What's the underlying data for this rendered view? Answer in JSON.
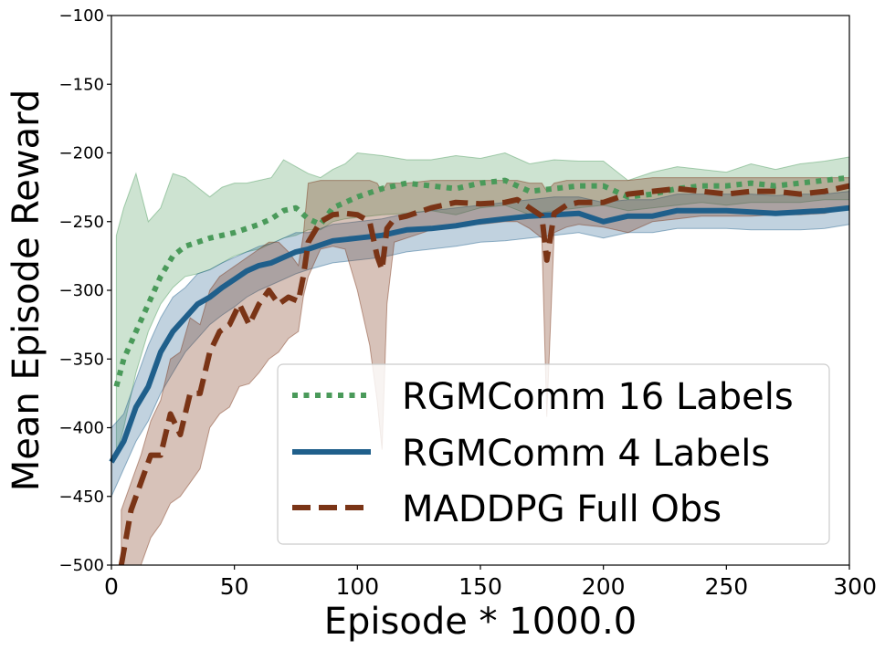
{
  "chart_data": {
    "type": "line",
    "title": "",
    "xlabel": "Episode * 1000.0",
    "ylabel": "Mean Episode Reward",
    "xlim": [
      0,
      300
    ],
    "ylim": [
      -500,
      -100
    ],
    "xticks": [
      0,
      50,
      100,
      150,
      200,
      250,
      300
    ],
    "yticks": [
      -100,
      -150,
      -200,
      -250,
      -300,
      -350,
      -400,
      -450,
      -500
    ],
    "xtick_labels": [
      "0",
      "50",
      "100",
      "150",
      "200",
      "250",
      "300"
    ],
    "ytick_labels": [
      "−100",
      "−150",
      "−200",
      "−250",
      "−300",
      "−350",
      "−400",
      "−450",
      "−500"
    ],
    "grid": false,
    "legend_position": "lower-right",
    "series": [
      {
        "name": "RGMComm 16 Labels",
        "color": "#4a9a5a",
        "style": "dotted",
        "x": [
          2,
          5,
          10,
          15,
          20,
          25,
          30,
          35,
          40,
          45,
          50,
          55,
          60,
          65,
          70,
          75,
          80,
          85,
          90,
          95,
          100,
          110,
          120,
          130,
          140,
          150,
          160,
          170,
          180,
          190,
          200,
          210,
          220,
          230,
          240,
          250,
          260,
          270,
          280,
          290,
          300
        ],
        "y": [
          -370,
          -350,
          -330,
          -310,
          -290,
          -275,
          -268,
          -265,
          -262,
          -260,
          -258,
          -255,
          -252,
          -248,
          -242,
          -240,
          -248,
          -252,
          -240,
          -236,
          -232,
          -226,
          -222,
          -224,
          -226,
          -222,
          -220,
          -228,
          -226,
          -224,
          -224,
          -232,
          -230,
          -226,
          -224,
          -224,
          -222,
          -224,
          -222,
          -220,
          -218
        ],
        "lower": [
          -420,
          -400,
          -360,
          -330,
          -310,
          -298,
          -290,
          -288,
          -285,
          -280,
          -275,
          -272,
          -270,
          -266,
          -262,
          -260,
          -256,
          -256,
          -250,
          -248,
          -247,
          -245,
          -244,
          -242,
          -245,
          -240,
          -238,
          -245,
          -242,
          -240,
          -238,
          -242,
          -240,
          -238,
          -236,
          -238,
          -236,
          -236,
          -236,
          -234,
          -234
        ],
        "upper": [
          -260,
          -240,
          -215,
          -250,
          -240,
          -215,
          -218,
          -225,
          -232,
          -225,
          -222,
          -222,
          -220,
          -218,
          -205,
          -210,
          -215,
          -218,
          -212,
          -208,
          -200,
          -202,
          -205,
          -205,
          -202,
          -204,
          -200,
          -208,
          -205,
          -206,
          -206,
          -220,
          -214,
          -210,
          -212,
          -214,
          -208,
          -212,
          -208,
          -206,
          -203
        ]
      },
      {
        "name": "RGMComm 4 Labels",
        "color": "#1f5f8b",
        "style": "solid",
        "x": [
          0,
          5,
          10,
          15,
          20,
          25,
          30,
          35,
          40,
          45,
          50,
          55,
          60,
          65,
          70,
          75,
          80,
          90,
          100,
          110,
          120,
          130,
          140,
          150,
          160,
          170,
          180,
          190,
          200,
          210,
          220,
          230,
          240,
          250,
          260,
          270,
          280,
          290,
          300
        ],
        "y": [
          -425,
          -410,
          -385,
          -370,
          -345,
          -330,
          -320,
          -310,
          -305,
          -298,
          -292,
          -286,
          -282,
          -280,
          -276,
          -272,
          -270,
          -264,
          -262,
          -260,
          -256,
          -255,
          -253,
          -250,
          -248,
          -246,
          -245,
          -244,
          -250,
          -246,
          -246,
          -242,
          -242,
          -242,
          -243,
          -244,
          -243,
          -242,
          -240
        ],
        "lower": [
          -450,
          -430,
          -410,
          -395,
          -375,
          -360,
          -345,
          -335,
          -325,
          -318,
          -312,
          -305,
          -300,
          -296,
          -292,
          -288,
          -285,
          -280,
          -278,
          -276,
          -272,
          -270,
          -268,
          -265,
          -264,
          -262,
          -260,
          -258,
          -262,
          -258,
          -258,
          -255,
          -255,
          -255,
          -256,
          -256,
          -256,
          -255,
          -252
        ],
        "upper": [
          -400,
          -390,
          -365,
          -340,
          -320,
          -305,
          -298,
          -288,
          -285,
          -280,
          -276,
          -272,
          -268,
          -266,
          -262,
          -258,
          -258,
          -252,
          -250,
          -248,
          -244,
          -242,
          -240,
          -238,
          -236,
          -234,
          -232,
          -232,
          -236,
          -234,
          -234,
          -230,
          -230,
          -230,
          -230,
          -231,
          -230,
          -230,
          -228
        ]
      },
      {
        "name": "MADDPG Full Obs",
        "color": "#7a3416",
        "style": "dashed",
        "x": [
          4,
          8,
          12,
          16,
          20,
          24,
          28,
          32,
          36,
          40,
          44,
          48,
          52,
          56,
          60,
          64,
          68,
          72,
          76,
          78,
          80,
          85,
          90,
          95,
          100,
          105,
          108,
          110,
          112,
          115,
          120,
          130,
          140,
          150,
          160,
          165,
          170,
          175,
          177,
          180,
          185,
          190,
          200,
          210,
          220,
          230,
          240,
          250,
          260,
          270,
          280,
          290,
          300
        ],
        "y": [
          -500,
          -460,
          -440,
          -420,
          -420,
          -390,
          -405,
          -375,
          -375,
          -345,
          -330,
          -325,
          -310,
          -325,
          -310,
          -300,
          -310,
          -305,
          -308,
          -290,
          -265,
          -250,
          -245,
          -244,
          -245,
          -250,
          -275,
          -285,
          -255,
          -248,
          -246,
          -240,
          -236,
          -237,
          -236,
          -234,
          -240,
          -246,
          -278,
          -244,
          -238,
          -236,
          -236,
          -230,
          -228,
          -226,
          -228,
          -230,
          -228,
          -228,
          -230,
          -228,
          -224
        ],
        "lower": [
          -500,
          -500,
          -500,
          -480,
          -470,
          -455,
          -450,
          -440,
          -430,
          -400,
          -390,
          -385,
          -370,
          -368,
          -360,
          -350,
          -345,
          -335,
          -330,
          -305,
          -290,
          -270,
          -268,
          -270,
          -300,
          -340,
          -380,
          -416,
          -310,
          -265,
          -262,
          -256,
          -252,
          -252,
          -250,
          -250,
          -255,
          -262,
          -392,
          -258,
          -254,
          -252,
          -254,
          -258,
          -250,
          -248,
          -246,
          -246,
          -246,
          -245,
          -245,
          -244,
          -240
        ],
        "upper": [
          -460,
          -440,
          -420,
          -395,
          -380,
          -350,
          -345,
          -320,
          -325,
          -300,
          -290,
          -285,
          -280,
          -275,
          -270,
          -265,
          -265,
          -272,
          -282,
          -260,
          -222,
          -220,
          -220,
          -220,
          -220,
          -220,
          -222,
          -228,
          -222,
          -222,
          -222,
          -220,
          -220,
          -220,
          -220,
          -220,
          -222,
          -222,
          -228,
          -222,
          -220,
          -220,
          -220,
          -220,
          -218,
          -218,
          -218,
          -218,
          -218,
          -218,
          -218,
          -218,
          -218
        ]
      }
    ]
  }
}
